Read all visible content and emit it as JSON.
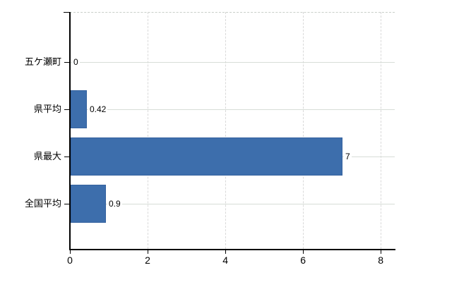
{
  "chart_data": {
    "type": "bar",
    "orientation": "horizontal",
    "title": "",
    "xlabel": "",
    "ylabel": "",
    "categories": [
      "五ケ瀬町",
      "県平均",
      "県最大",
      "全国平均"
    ],
    "values": [
      0,
      0.42,
      7,
      0.9
    ],
    "value_labels": [
      "0",
      "0.42",
      "7",
      "0.9"
    ],
    "x_ticks": [
      0,
      2,
      4,
      6,
      8
    ],
    "x_tick_labels": [
      "0",
      "2",
      "4",
      "6",
      "8"
    ],
    "xlim": [
      0,
      8.36
    ],
    "legend": "none",
    "grid": {
      "horizontal": "solid",
      "vertical": "dashed",
      "top_border": "dashed"
    },
    "colors": {
      "bar_fill": "#3d6eac",
      "bar_border": "#35629f",
      "grid_horizontal": "#d7ddd7",
      "grid_vertical": "#d9d9d9",
      "axis": "#000000",
      "text": "#000000",
      "background": "#ffffff"
    }
  }
}
